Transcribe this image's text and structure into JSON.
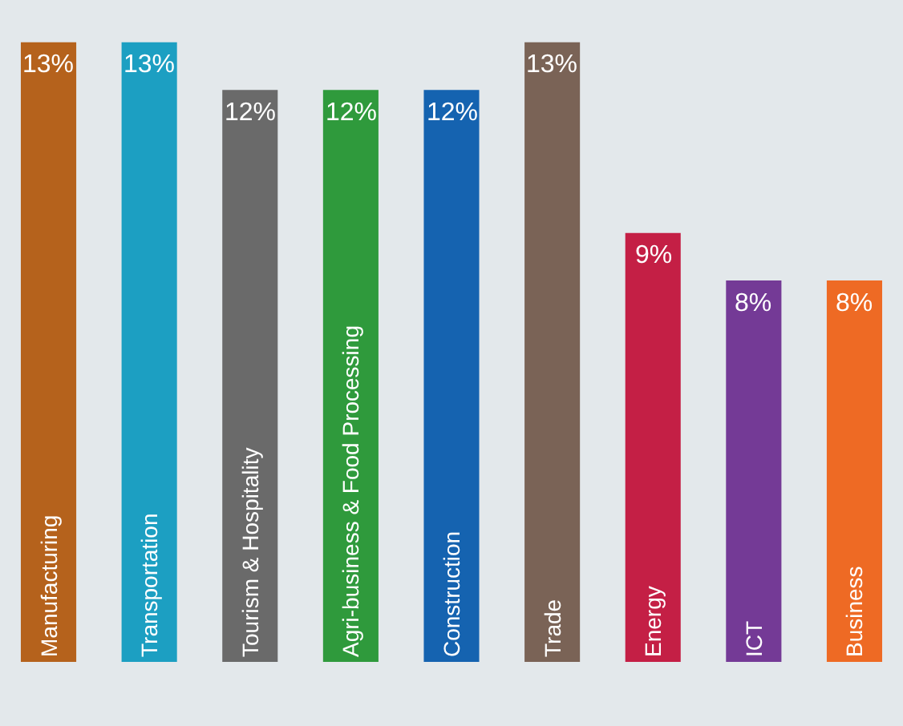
{
  "chart_data": {
    "type": "bar",
    "categories": [
      "Manufacturing",
      "Transportation",
      "Tourism & Hospitality",
      "Agri-business & Food Processing",
      "Construction",
      "Trade",
      "Energy",
      "ICT",
      "Business"
    ],
    "values": [
      13,
      13,
      12,
      12,
      12,
      13,
      9,
      8,
      8
    ],
    "value_labels": [
      "13%",
      "13%",
      "12%",
      "12%",
      "12%",
      "13%",
      "9%",
      "8%",
      "8%"
    ],
    "colors": [
      "#b5621c",
      "#1c9fc2",
      "#6a6a6a",
      "#2f9a3c",
      "#1563b0",
      "#7a6356",
      "#c41f45",
      "#743a96",
      "#ee6a24"
    ]
  }
}
